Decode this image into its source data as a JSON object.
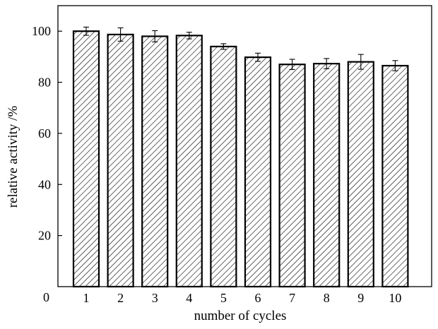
{
  "chart_data": {
    "type": "bar",
    "categories": [
      "1",
      "2",
      "3",
      "4",
      "5",
      "6",
      "7",
      "8",
      "9",
      "10"
    ],
    "values": [
      100.0,
      98.7,
      98.0,
      98.3,
      94.0,
      89.8,
      87.0,
      87.3,
      88.0,
      86.5
    ],
    "errors": [
      1.6,
      2.6,
      2.2,
      1.3,
      1.1,
      1.6,
      2.0,
      2.0,
      2.9,
      2.0
    ],
    "xlabel": "number of cycles",
    "ylabel": "relative activity /%",
    "ylim": [
      0,
      110
    ],
    "yticks": [
      20,
      40,
      60,
      80,
      100
    ],
    "origin_label": "0",
    "grid": false,
    "bar_fill": "hatched",
    "colors": {
      "bar_stroke": "#000000",
      "hatch": "#000000",
      "background": "#ffffff",
      "axis": "#000000"
    }
  }
}
